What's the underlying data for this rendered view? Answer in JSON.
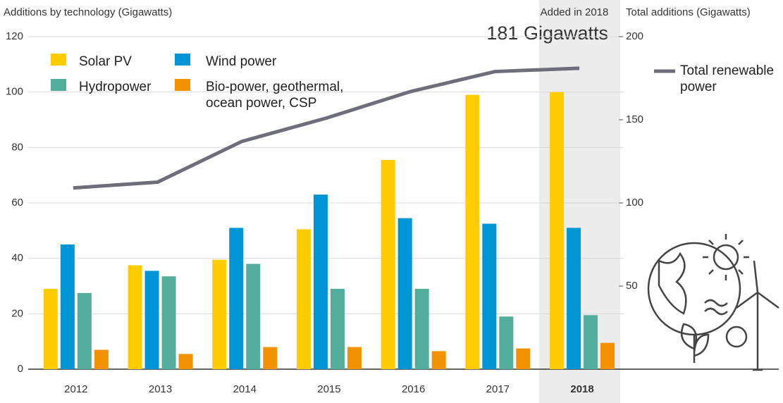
{
  "chart_data": {
    "type": "bar",
    "ylabel": "Additions by technology (Gigawatts)",
    "y2label": "Total additions (Gigawatts)",
    "annotations": [
      "Added in 2018",
      "181 Gigawatts"
    ],
    "categories": [
      "2012",
      "2013",
      "2014",
      "2015",
      "2016",
      "2017",
      "2018"
    ],
    "ylim": [
      0,
      120
    ],
    "yticks": [
      0,
      20,
      40,
      60,
      80,
      100,
      120
    ],
    "y2lim": [
      0,
      200
    ],
    "y2ticks": [
      50,
      100,
      150,
      200
    ],
    "grid": true,
    "series": [
      {
        "name": "Solar PV",
        "color": "#ffcc00",
        "values": [
          29,
          37.5,
          39.5,
          50.5,
          75.5,
          99,
          100
        ]
      },
      {
        "name": "Wind power",
        "color": "#0096d6",
        "values": [
          45,
          35.5,
          51,
          63,
          54.5,
          52.5,
          51
        ]
      },
      {
        "name": "Hydropower",
        "color": "#52ad9c",
        "values": [
          27.5,
          33.5,
          38,
          29,
          29,
          19,
          19.5
        ]
      },
      {
        "name": "Bio-power, geothermal, ocean power, CSP",
        "color": "#f39200",
        "values": [
          7,
          5.5,
          8,
          8,
          6.5,
          7.5,
          9.5
        ]
      },
      {
        "name": "Total renewable power",
        "color": "#6d6e7a",
        "type": "line",
        "axis": "y2",
        "values": [
          109,
          112.5,
          137,
          151,
          167,
          179,
          181
        ]
      }
    ]
  }
}
